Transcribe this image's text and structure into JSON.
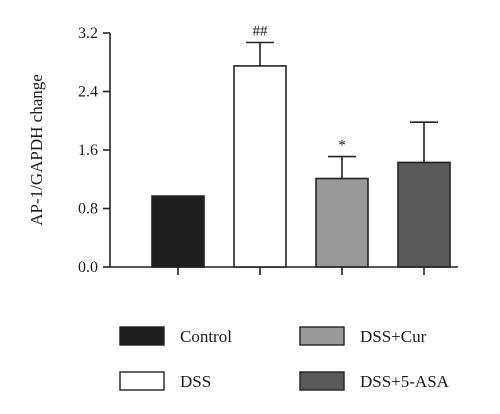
{
  "chart_data": {
    "type": "bar",
    "title": "",
    "xlabel": "",
    "ylabel": "AP-1/GAPDH change",
    "ylim": [
      0,
      3.2
    ],
    "yticks": [
      "0.0",
      "0.8",
      "1.6",
      "2.4",
      "3.2"
    ],
    "categories": [
      "Control",
      "DSS",
      "DSS+Cur",
      "DSS+5-ASA"
    ],
    "values": [
      0.97,
      2.75,
      1.21,
      1.43
    ],
    "errors": [
      0,
      0.32,
      0.3,
      0.55
    ],
    "significance": [
      "",
      "##",
      "*",
      ""
    ],
    "bar_colors": [
      "#1f1f1f",
      "#ffffff",
      "#999999",
      "#5a5a5a"
    ],
    "grid": false,
    "legend_position": "bottom"
  }
}
